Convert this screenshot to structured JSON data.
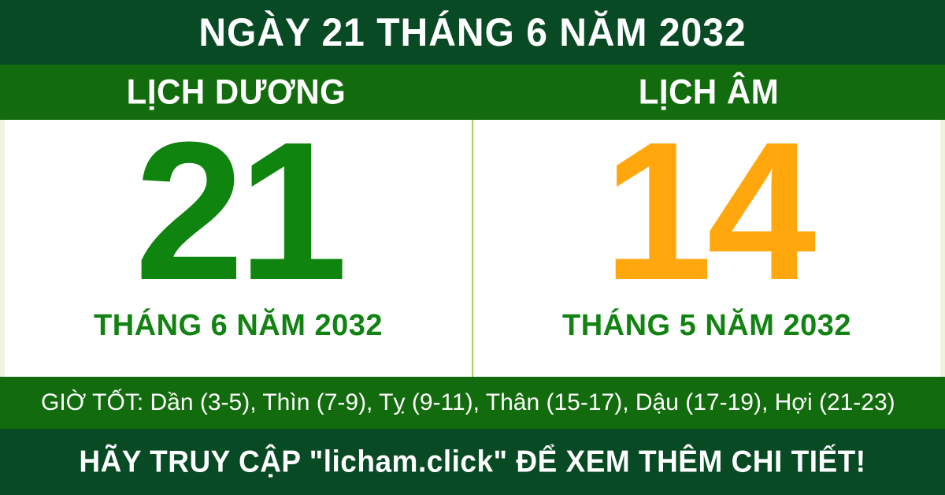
{
  "header": {
    "title": "NGÀY 21 THÁNG 6 NĂM 2032"
  },
  "calendar": {
    "solar": {
      "label": "LỊCH DƯƠNG",
      "day": "21",
      "month_year": "THÁNG 6 NĂM 2032",
      "day_color": "#0f840f"
    },
    "lunar": {
      "label": "LỊCH ÂM",
      "day": "14",
      "month_year": "THÁNG 5 NĂM 2032",
      "day_color": "#ffa70d"
    }
  },
  "good_hours": {
    "text": "GIỜ TỐT: Dần (3-5), Thìn (7-9), Tỵ (9-11), Thân (15-17), Dậu (17-19), Hợi (21-23)"
  },
  "footer": {
    "text": "HÃY TRUY CẬP \"licham.click\" ĐỂ XEM THÊM CHI TIẾT!"
  },
  "colors": {
    "dark_green": "#074a24",
    "medium_green": "#126b0d",
    "month_text_green": "#128312",
    "divider_light_green": "#a2d162",
    "edge_strip": "#eff4e0",
    "panel_background": "#ffffff",
    "text_white": "#ffffff"
  }
}
